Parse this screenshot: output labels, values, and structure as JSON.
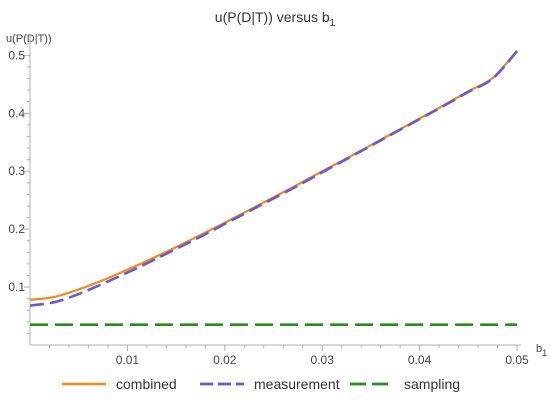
{
  "chart_data": {
    "type": "line",
    "title": "u(P(D|T)) versus b",
    "title_subscript": "1",
    "xlabel": "b",
    "xlabel_subscript": "1",
    "ylabel": "u(P(D|T))",
    "xlim": [
      0,
      0.05
    ],
    "ylim": [
      0,
      0.53
    ],
    "x_ticks": [
      0.01,
      0.02,
      0.03,
      0.04,
      0.05
    ],
    "x_tick_labels": [
      "0.01",
      "0.02",
      "0.03",
      "0.04",
      "0.05"
    ],
    "y_ticks": [
      0.1,
      0.2,
      0.3,
      0.4,
      0.5
    ],
    "y_tick_labels": [
      "0.1",
      "0.2",
      "0.3",
      "0.4",
      "0.5"
    ],
    "grid": false,
    "legend_position": "bottom",
    "series": [
      {
        "name": "combined",
        "color": "#f08a1c",
        "style": "solid",
        "x": [
          0,
          0.0025,
          0.005,
          0.0075,
          0.01,
          0.0125,
          0.015,
          0.0175,
          0.02,
          0.0225,
          0.025,
          0.0275,
          0.03,
          0.0325,
          0.035,
          0.0375,
          0.04,
          0.0425,
          0.045,
          0.0475,
          0.05
        ],
        "values": [
          0.078,
          0.083,
          0.096,
          0.112,
          0.13,
          0.149,
          0.169,
          0.19,
          0.211,
          0.233,
          0.255,
          0.277,
          0.3,
          0.322,
          0.345,
          0.368,
          0.391,
          0.414,
          0.438,
          0.461,
          0.508
        ]
      },
      {
        "name": "measurement",
        "color": "#6a5acd",
        "style": "dashed",
        "x": [
          0,
          0.0025,
          0.005,
          0.0075,
          0.01,
          0.0125,
          0.015,
          0.0175,
          0.02,
          0.0225,
          0.025,
          0.0275,
          0.03,
          0.0325,
          0.035,
          0.0375,
          0.04,
          0.0425,
          0.045,
          0.0475,
          0.05
        ],
        "values": [
          0.068,
          0.074,
          0.088,
          0.106,
          0.125,
          0.145,
          0.166,
          0.187,
          0.209,
          0.231,
          0.253,
          0.275,
          0.298,
          0.321,
          0.344,
          0.367,
          0.39,
          0.413,
          0.437,
          0.46,
          0.507
        ]
      },
      {
        "name": "sampling",
        "color": "#2a8a1e",
        "style": "long-dashed",
        "x": [
          0,
          0.05
        ],
        "values": [
          0.035,
          0.035
        ]
      }
    ]
  }
}
